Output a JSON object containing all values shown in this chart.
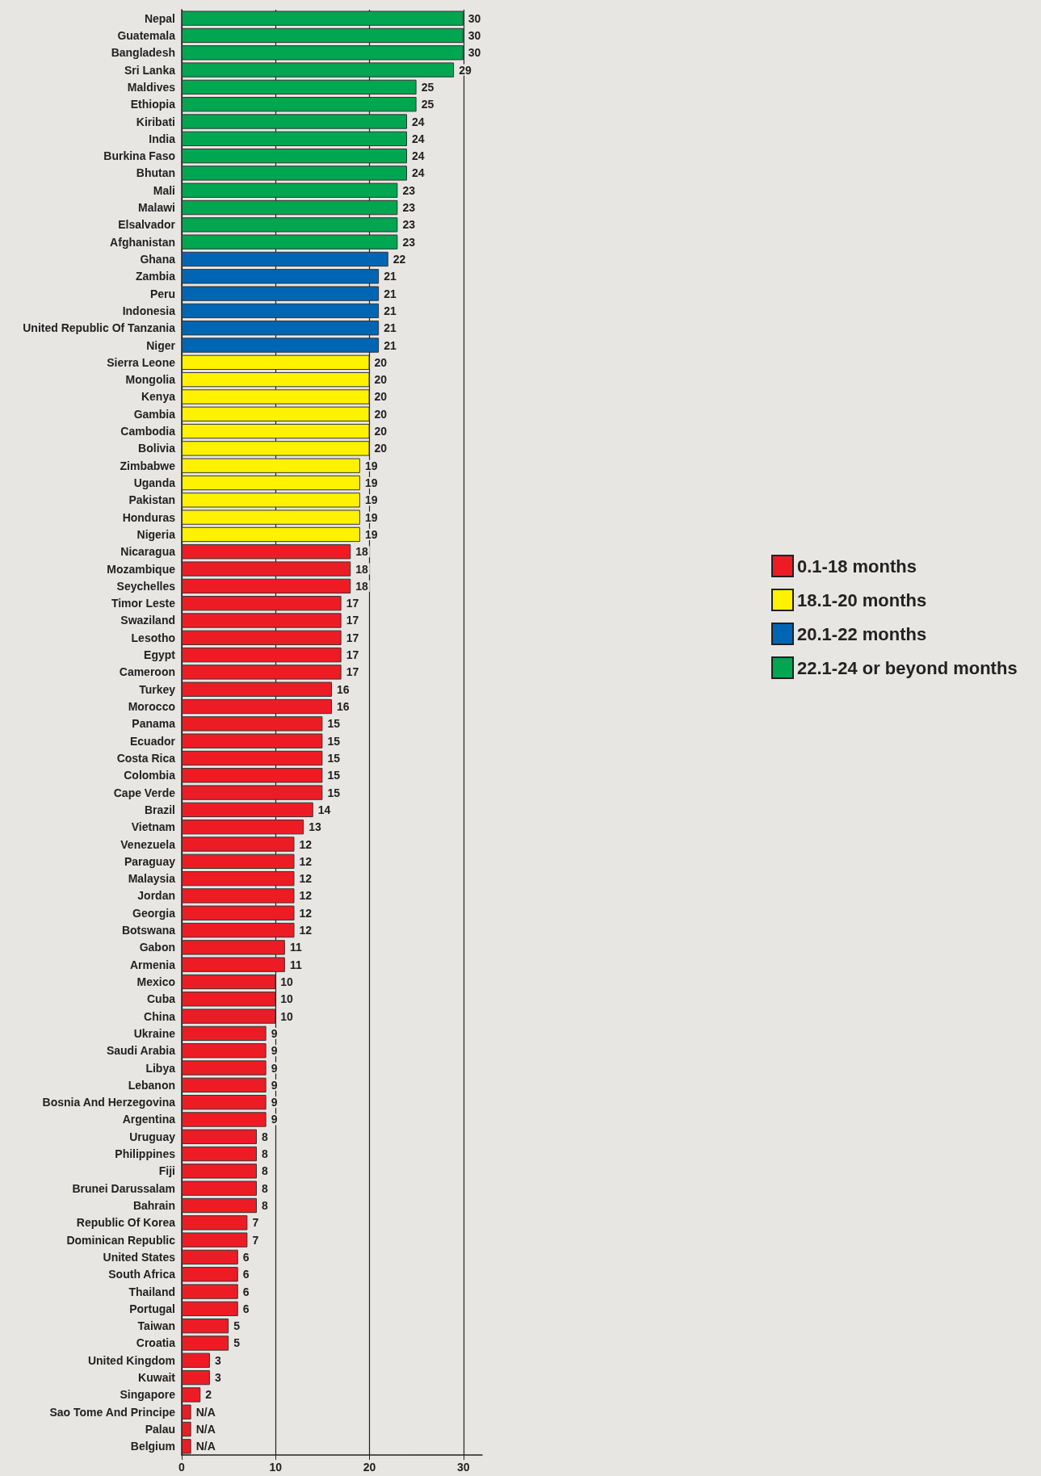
{
  "chart_data": {
    "type": "bar",
    "orientation": "horizontal",
    "stacked": true,
    "categories": [
      "Nepal",
      "Guatemala",
      "Bangladesh",
      "Sri Lanka",
      "Maldives",
      "Ethiopia",
      "Kiribati",
      "India",
      "Burkina Faso",
      "Bhutan",
      "Mali",
      "Malawi",
      "Elsalvador",
      "Afghanistan",
      "Ghana",
      "Zambia",
      "Peru",
      "Indonesia",
      "United Republic Of Tanzania",
      "Niger",
      "Sierra Leone",
      "Mongolia",
      "Kenya",
      "Gambia",
      "Cambodia",
      "Bolivia",
      "Zimbabwe",
      "Uganda",
      "Pakistan",
      "Honduras",
      "Nigeria",
      "Nicaragua",
      "Mozambique",
      "Seychelles",
      "Timor Leste",
      "Swaziland",
      "Lesotho",
      "Egypt",
      "Cameroon",
      "Turkey",
      "Morocco",
      "Panama",
      "Ecuador",
      "Costa Rica",
      "Colombia",
      "Cape Verde",
      "Brazil",
      "Vietnam",
      "Venezuela",
      "Paraguay",
      "Malaysia",
      "Jordan",
      "Georgia",
      "Botswana",
      "Gabon",
      "Armenia",
      "Mexico",
      "Cuba",
      "China",
      "Ukraine",
      "Saudi Arabia",
      "Libya",
      "Lebanon",
      "Bosnia And Herzegovina",
      "Argentina",
      "Uruguay",
      "Philippines",
      "Fiji",
      "Brunei Darussalam",
      "Bahrain",
      "Republic Of Korea",
      "Dominican Republic",
      "United States",
      "South Africa",
      "Thailand",
      "Portugal",
      "Taiwan",
      "Croatia",
      "United Kingdom",
      "Kuwait",
      "Singapore",
      "Sao Tome And Principe",
      "Palau",
      "Belgium"
    ],
    "series": [
      {
        "name": "0.1-18 months",
        "color": "#ed1c24",
        "values": [
          null,
          null,
          null,
          null,
          null,
          null,
          null,
          null,
          null,
          null,
          null,
          null,
          null,
          null,
          null,
          null,
          null,
          null,
          null,
          null,
          null,
          null,
          null,
          null,
          null,
          null,
          null,
          null,
          null,
          null,
          null,
          18,
          18,
          18,
          17,
          17,
          17,
          17,
          17,
          16,
          16,
          15,
          15,
          15,
          15,
          15,
          14,
          13,
          12,
          12,
          12,
          12,
          12,
          12,
          11,
          11,
          10,
          10,
          10,
          9,
          9,
          9,
          9,
          9,
          9,
          8,
          8,
          8,
          8,
          8,
          7,
          7,
          6,
          6,
          6,
          6,
          5,
          5,
          3,
          3,
          2,
          1,
          1,
          1
        ],
        "value_labels": [
          null,
          null,
          null,
          null,
          null,
          null,
          null,
          null,
          null,
          null,
          null,
          null,
          null,
          null,
          null,
          null,
          null,
          null,
          null,
          null,
          null,
          null,
          null,
          null,
          null,
          null,
          null,
          null,
          null,
          null,
          null,
          "18",
          "18",
          "18",
          "17",
          "17",
          "17",
          "17",
          "17",
          "16",
          "16",
          "15",
          "15",
          "15",
          "15",
          "15",
          "14",
          "13",
          "12",
          "12",
          "12",
          "12",
          "12",
          "12",
          "11",
          "11",
          "10",
          "10",
          "10",
          "9",
          "9",
          "9",
          "9",
          "9",
          "9",
          "8",
          "8",
          "8",
          "8",
          "8",
          "7",
          "7",
          "6",
          "6",
          "6",
          "6",
          "5",
          "5",
          "3",
          "3",
          "2",
          "N/A",
          "N/A",
          "N/A"
        ]
      },
      {
        "name": "18.1-20 months",
        "color": "#fff200",
        "values": [
          null,
          null,
          null,
          null,
          null,
          null,
          null,
          null,
          null,
          null,
          null,
          null,
          null,
          null,
          null,
          null,
          null,
          null,
          null,
          null,
          20,
          20,
          20,
          20,
          20,
          20,
          19,
          19,
          19,
          19,
          19,
          null,
          null,
          null,
          null,
          null,
          null,
          null,
          null,
          null,
          null,
          null,
          null,
          null,
          null,
          null,
          null,
          null,
          null,
          null,
          null,
          null,
          null,
          null,
          null,
          null,
          null,
          null,
          null,
          null,
          null,
          null,
          null,
          null,
          null,
          null,
          null,
          null,
          null,
          null,
          null,
          null,
          null,
          null,
          null,
          null,
          null,
          null,
          null,
          null,
          null,
          null,
          null,
          null
        ]
      },
      {
        "name": "20.1-22 months",
        "color": "#0066b3",
        "values": [
          null,
          null,
          null,
          null,
          null,
          null,
          null,
          null,
          null,
          null,
          null,
          null,
          null,
          null,
          22,
          21,
          21,
          21,
          21,
          21,
          null,
          null,
          null,
          null,
          null,
          null,
          null,
          null,
          null,
          null,
          null,
          null,
          null,
          null,
          null,
          null,
          null,
          null,
          null,
          null,
          null,
          null,
          null,
          null,
          null,
          null,
          null,
          null,
          null,
          null,
          null,
          null,
          null,
          null,
          null,
          null,
          null,
          null,
          null,
          null,
          null,
          null,
          null,
          null,
          null,
          null,
          null,
          null,
          null,
          null,
          null,
          null,
          null,
          null,
          null,
          null,
          null,
          null,
          null,
          null,
          null,
          null,
          null,
          null
        ]
      },
      {
        "name": "22.1-24 or beyond months",
        "color": "#00a650",
        "values": [
          30,
          30,
          30,
          29,
          25,
          25,
          24,
          24,
          24,
          24,
          23,
          23,
          23,
          23,
          null,
          null,
          null,
          null,
          null,
          null,
          null,
          null,
          null,
          null,
          null,
          null,
          null,
          null,
          null,
          null,
          null,
          null,
          null,
          null,
          null,
          null,
          null,
          null,
          null,
          null,
          null,
          null,
          null,
          null,
          null,
          null,
          null,
          null,
          null,
          null,
          null,
          null,
          null,
          null,
          null,
          null,
          null,
          null,
          null,
          null,
          null,
          null,
          null,
          null,
          null,
          null,
          null,
          null,
          null,
          null,
          null,
          null,
          null,
          null,
          null,
          null,
          null,
          null,
          null,
          null,
          null,
          null,
          null,
          null
        ]
      }
    ],
    "xlim": [
      0,
      32
    ],
    "xticks": [
      0,
      10,
      20,
      30
    ],
    "grid": "x",
    "data_labels": true,
    "legend": "right"
  }
}
